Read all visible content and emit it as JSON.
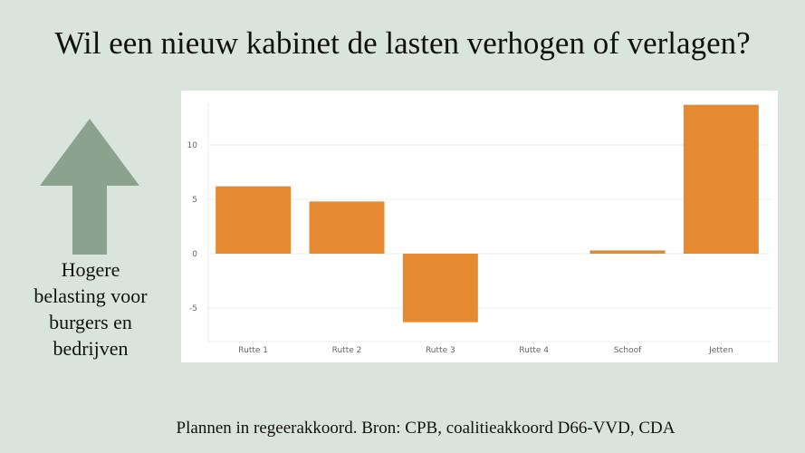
{
  "title": "Wil een nieuw kabinet de lasten verhogen of verlagen?",
  "side_label": {
    "lines": [
      "Hogere",
      "belasting voor",
      "burgers en",
      "bedrijven"
    ],
    "arrow_color": "#8ba28e",
    "icon": "arrow-up-icon"
  },
  "caption": "Plannen in regeerakkoord. Bron: CPB, coalitieakkoord D66-VVD, CDA",
  "colors": {
    "background": "#d9e5dc",
    "bar": "#e68a32",
    "panel": "#ffffff"
  },
  "chart_data": {
    "type": "bar",
    "title": "",
    "xlabel": "",
    "ylabel": "",
    "categories": [
      "Rutte 1",
      "Rutte 2",
      "Rutte 3",
      "Rutte 4",
      "Schoof",
      "Jetten"
    ],
    "values": [
      6.2,
      4.8,
      -6.3,
      0,
      0.3,
      13.7
    ],
    "yticks": [
      -5,
      0,
      5,
      10
    ],
    "ytick_labels": [
      "-5",
      "0",
      "5",
      "10"
    ],
    "ylim": [
      -8.3,
      14.1
    ],
    "grid": true,
    "legend": false
  }
}
